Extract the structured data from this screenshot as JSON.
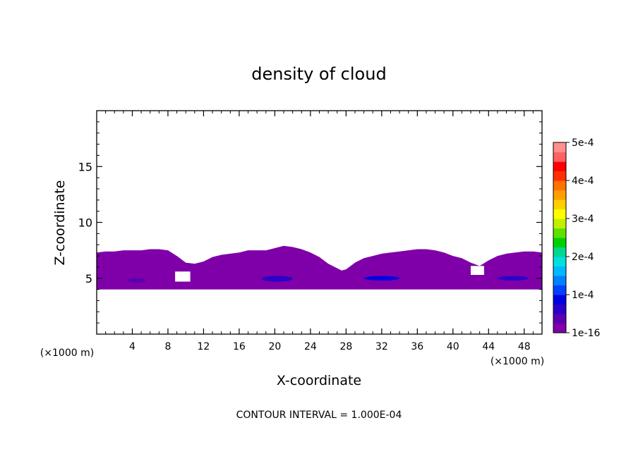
{
  "chart_data": {
    "type": "heatmap",
    "title": "density of cloud",
    "xlabel": "X-coordinate",
    "ylabel": "Z-coordinate",
    "x_unit_label": "(×1000 m)",
    "x_unit_label_right": "(×1000 m)",
    "xlim": [
      0,
      50
    ],
    "ylim": [
      0,
      20
    ],
    "x_ticks": [
      4,
      8,
      12,
      16,
      20,
      24,
      28,
      32,
      36,
      40,
      44,
      48
    ],
    "x_tick_labels": [
      "4",
      "8",
      "12",
      "16",
      "20",
      "24",
      "28",
      "32",
      "36",
      "40",
      "44",
      "48"
    ],
    "y_ticks": [
      5,
      10,
      15
    ],
    "y_tick_labels": [
      "5",
      "10",
      "15"
    ],
    "footer": "CONTOUR INTERVAL = 1.000E-04",
    "colorbar": {
      "min": 1e-16,
      "max": 0.0005,
      "tick_values": [
        1e-16,
        0.0001,
        0.0002,
        0.0003,
        0.0004,
        0.0005
      ],
      "tick_labels": [
        "1e-16",
        "1e-4",
        "2e-4",
        "3e-4",
        "4e-4",
        "5e-4"
      ],
      "colors": [
        "#7f00a8",
        "#5a00b4",
        "#2a00c8",
        "#0000e0",
        "#0040ff",
        "#0080ff",
        "#00b8ff",
        "#00e0e0",
        "#00d890",
        "#00d000",
        "#60e000",
        "#c0f000",
        "#ffff00",
        "#ffd000",
        "#ffa000",
        "#ff7000",
        "#ff3000",
        "#ff0000",
        "#ff6060",
        "#ff9090"
      ]
    },
    "cloud_layer": {
      "base_z": 4.0,
      "top_profile_x": [
        0,
        1,
        2,
        3,
        4,
        5,
        6,
        7,
        8,
        9,
        10,
        11,
        12,
        13,
        14,
        15,
        16,
        17,
        18,
        19,
        20,
        21,
        22,
        23,
        24,
        25,
        26,
        27,
        27.5,
        28,
        29,
        30,
        31,
        32,
        33,
        34,
        35,
        36,
        37,
        38,
        39,
        40,
        41,
        42,
        43,
        44,
        45,
        46,
        47,
        48,
        49,
        50
      ],
      "top_profile_z": [
        7.3,
        7.4,
        7.4,
        7.5,
        7.5,
        7.5,
        7.6,
        7.6,
        7.5,
        7.0,
        6.4,
        6.3,
        6.5,
        6.9,
        7.1,
        7.2,
        7.3,
        7.5,
        7.5,
        7.5,
        7.7,
        7.9,
        7.8,
        7.6,
        7.3,
        6.9,
        6.3,
        5.9,
        5.7,
        5.8,
        6.4,
        6.8,
        7.0,
        7.2,
        7.3,
        7.4,
        7.5,
        7.6,
        7.6,
        7.5,
        7.3,
        7.0,
        6.8,
        6.4,
        6.1,
        6.6,
        7.0,
        7.2,
        7.3,
        7.4,
        7.4,
        7.3
      ],
      "value": 1e-16,
      "denser_patches": [
        {
          "x": [
            3.5,
            5.5
          ],
          "z": [
            4.6,
            5.0
          ],
          "value": 5e-05
        },
        {
          "x": [
            18.5,
            22.0
          ],
          "z": [
            4.7,
            5.2
          ],
          "value": 7e-05
        },
        {
          "x": [
            30.0,
            34.0
          ],
          "z": [
            4.8,
            5.2
          ],
          "value": 8e-05
        },
        {
          "x": [
            45.0,
            48.5
          ],
          "z": [
            4.8,
            5.2
          ],
          "value": 7e-05
        }
      ],
      "gaps": [
        {
          "x": [
            8.8,
            10.5
          ],
          "z": [
            4.7,
            5.6
          ]
        },
        {
          "x": [
            42.0,
            43.5
          ],
          "z": [
            5.3,
            6.1
          ]
        }
      ]
    }
  }
}
